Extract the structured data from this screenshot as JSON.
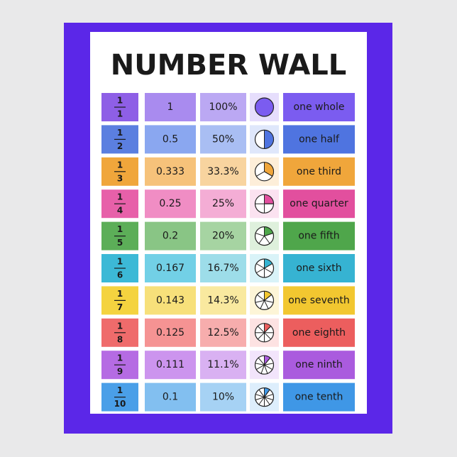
{
  "title": "NUMBER WALL",
  "rows": [
    {
      "numerator": 1,
      "denominator": 1,
      "decimal": 1,
      "percent": "100%",
      "words": "one whole"
    },
    {
      "numerator": 1,
      "denominator": 2,
      "decimal": 0.5,
      "percent": "50%",
      "words": "one half"
    },
    {
      "numerator": 1,
      "denominator": 3,
      "decimal": 0.333,
      "percent": "33.3%",
      "words": "one third"
    },
    {
      "numerator": 1,
      "denominator": 4,
      "decimal": 0.25,
      "percent": "25%",
      "words": "one quarter"
    },
    {
      "numerator": 1,
      "denominator": 5,
      "decimal": 0.2,
      "percent": "20%",
      "words": "one fifth"
    },
    {
      "numerator": 1,
      "denominator": 6,
      "decimal": 0.167,
      "percent": "16.7%",
      "words": "one sixth"
    },
    {
      "numerator": 1,
      "denominator": 7,
      "decimal": 0.143,
      "percent": "14.3%",
      "words": "one seventh"
    },
    {
      "numerator": 1,
      "denominator": 8,
      "decimal": 0.125,
      "percent": "12.5%",
      "words": "one eighth"
    },
    {
      "numerator": 1,
      "denominator": 9,
      "decimal": 0.111,
      "percent": "11.1%",
      "words": "one ninth"
    },
    {
      "numerator": 1,
      "denominator": 10,
      "decimal": 0.1,
      "percent": "10%",
      "words": "one tenth"
    }
  ]
}
